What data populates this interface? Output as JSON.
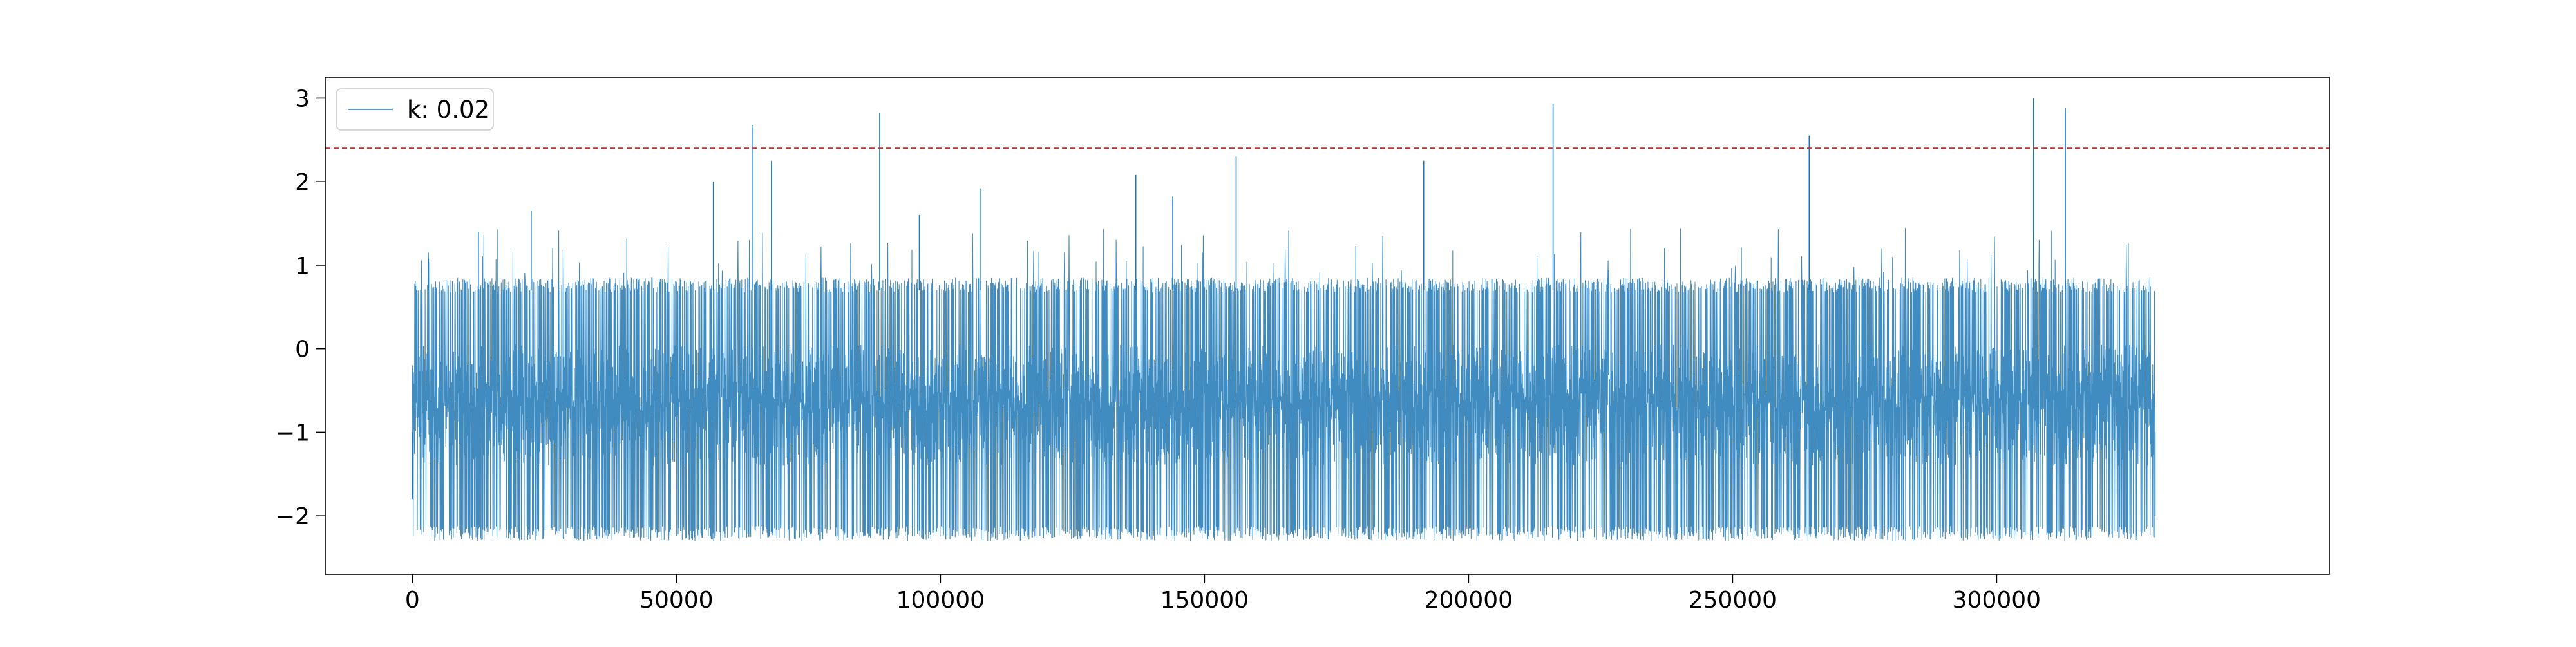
{
  "chart_data": {
    "type": "line",
    "title": "",
    "xlabel": "",
    "ylabel": "",
    "xlim": [
      -16500,
      363000.0
    ],
    "ylim": [
      -2.7,
      3.25
    ],
    "x_ticks": [
      {
        "value": 0,
        "label": "0"
      },
      {
        "value": 50000,
        "label": "50000"
      },
      {
        "value": 100000,
        "label": "100000"
      },
      {
        "value": 150000,
        "label": "150000"
      },
      {
        "value": 200000,
        "label": "200000"
      },
      {
        "value": 250000,
        "label": "250000"
      },
      {
        "value": 300000,
        "label": "300000"
      }
    ],
    "y_ticks": [
      {
        "value": -2,
        "label": "−2"
      },
      {
        "value": -1,
        "label": "−1"
      },
      {
        "value": 0,
        "label": "0"
      },
      {
        "value": 1,
        "label": "1"
      },
      {
        "value": 2,
        "label": "2"
      },
      {
        "value": 3,
        "label": "3"
      }
    ],
    "grid": false,
    "legend": {
      "position": "top-left",
      "entries": [
        "k: 0.02"
      ]
    },
    "colors": {
      "series": "#1f77b4",
      "threshold": "#d62728",
      "axes": "#000000"
    },
    "threshold_line": {
      "y": 2.4,
      "style": "dashed"
    },
    "series": [
      {
        "name": "k: 0.02",
        "x_range": [
          0,
          330000
        ],
        "typical_min": -2.3,
        "typical_max": 0.85,
        "samples": [
          {
            "x": 0,
            "y": -1.8
          },
          {
            "x": 3000,
            "y": 1.15
          },
          {
            "x": 12500,
            "y": 1.4
          },
          {
            "x": 22500,
            "y": 1.65
          },
          {
            "x": 57000,
            "y": 2.0
          },
          {
            "x": 64500,
            "y": 2.68
          },
          {
            "x": 68000,
            "y": 2.25
          },
          {
            "x": 88500,
            "y": 2.82
          },
          {
            "x": 96000,
            "y": 1.6
          },
          {
            "x": 107500,
            "y": 1.92
          },
          {
            "x": 137000,
            "y": 2.08
          },
          {
            "x": 144000,
            "y": 1.82
          },
          {
            "x": 156000,
            "y": 2.3
          },
          {
            "x": 191500,
            "y": 2.25
          },
          {
            "x": 216000,
            "y": 2.93
          },
          {
            "x": 264500,
            "y": 2.55
          },
          {
            "x": 307000,
            "y": 3.0
          },
          {
            "x": 313000,
            "y": 2.88
          },
          {
            "x": 330000,
            "y": -2.0
          }
        ]
      }
    ]
  }
}
